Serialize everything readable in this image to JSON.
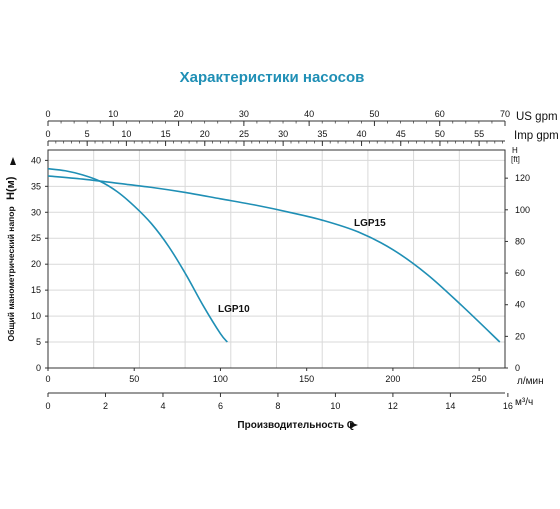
{
  "chart_data": {
    "type": "line",
    "title": "Характеристики насосов",
    "colors": {
      "title": "#1f8fb5",
      "curve": "#1f8fb5",
      "grid": "#d9d9d9",
      "axis": "#333333"
    },
    "grid": true,
    "x_primary": {
      "unit": "л/мин",
      "range": [
        0,
        265
      ],
      "ticks": [
        0,
        50,
        100,
        150,
        200,
        250
      ]
    },
    "x_m3h": {
      "unit": "м³/ч",
      "range": [
        0,
        15.9
      ],
      "ticks": [
        0,
        2,
        4,
        6,
        8,
        10,
        12,
        14,
        16
      ]
    },
    "x_us_gpm": {
      "unit": "US gpm",
      "range": [
        0,
        70
      ],
      "ticks": [
        0,
        10,
        20,
        30,
        40,
        50,
        60,
        70
      ]
    },
    "x_imp_gpm": {
      "unit": "Imp gpm",
      "range": [
        0,
        58.3
      ],
      "ticks": [
        0,
        5,
        10,
        15,
        20,
        25,
        30,
        35,
        40,
        45,
        50,
        55
      ]
    },
    "y_left": {
      "label": "Общий манометрический напор",
      "unit": "H(м)",
      "range": [
        0,
        42
      ],
      "ticks": [
        0,
        5,
        10,
        15,
        20,
        25,
        30,
        35,
        40
      ]
    },
    "y_right": {
      "unit_line1": "H",
      "unit_line2": "[ft]",
      "range": [
        0,
        137.8
      ],
      "ticks": [
        0,
        20,
        40,
        60,
        80,
        100,
        120
      ]
    },
    "xlabel": "Производительность Q",
    "series": [
      {
        "name": "LGP10",
        "x": [
          0,
          10,
          20,
          30,
          40,
          50,
          60,
          70,
          80,
          90,
          100,
          104
        ],
        "y": [
          38.4,
          38.0,
          37.2,
          36.0,
          34.0,
          31.2,
          27.8,
          23.4,
          18.0,
          12.0,
          6.6,
          5.0
        ]
      },
      {
        "name": "LGP15",
        "x": [
          0,
          20,
          40,
          60,
          80,
          100,
          120,
          140,
          160,
          180,
          200,
          220,
          240,
          262
        ],
        "y": [
          37.0,
          36.4,
          35.6,
          34.8,
          33.8,
          32.6,
          31.4,
          30.0,
          28.4,
          26.2,
          22.8,
          18.0,
          12.0,
          5.0
        ]
      }
    ]
  }
}
